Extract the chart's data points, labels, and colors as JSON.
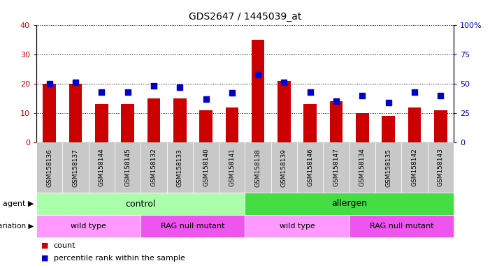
{
  "title": "GDS2647 / 1445039_at",
  "samples": [
    "GSM158136",
    "GSM158137",
    "GSM158144",
    "GSM158145",
    "GSM158132",
    "GSM158133",
    "GSM158140",
    "GSM158141",
    "GSM158138",
    "GSM158139",
    "GSM158146",
    "GSM158147",
    "GSM158134",
    "GSM158135",
    "GSM158142",
    "GSM158143"
  ],
  "counts": [
    20,
    20,
    13,
    13,
    15,
    15,
    11,
    12,
    35,
    21,
    13,
    14,
    10,
    9,
    12,
    11
  ],
  "percentiles": [
    50,
    51,
    43,
    43,
    48,
    47,
    37,
    42,
    58,
    51,
    43,
    35,
    40,
    34,
    43,
    40
  ],
  "bar_color": "#cc0000",
  "dot_color": "#0000cc",
  "ylim_left": [
    0,
    40
  ],
  "ylim_right": [
    0,
    100
  ],
  "yticks_left": [
    0,
    10,
    20,
    30,
    40
  ],
  "yticks_right": [
    0,
    25,
    50,
    75,
    100
  ],
  "ytick_labels_right": [
    "0",
    "25",
    "50",
    "75",
    "100%"
  ],
  "agent_groups": [
    {
      "label": "control",
      "start": 0,
      "end": 8,
      "color": "#aaffaa"
    },
    {
      "label": "allergen",
      "start": 8,
      "end": 16,
      "color": "#44dd44"
    }
  ],
  "genotype_groups": [
    {
      "label": "wild type",
      "start": 0,
      "end": 4,
      "color": "#ff99ff"
    },
    {
      "label": "RAG null mutant",
      "start": 4,
      "end": 8,
      "color": "#ee55ee"
    },
    {
      "label": "wild type",
      "start": 8,
      "end": 12,
      "color": "#ff99ff"
    },
    {
      "label": "RAG null mutant",
      "start": 12,
      "end": 16,
      "color": "#ee55ee"
    }
  ],
  "legend_items": [
    {
      "label": "count",
      "color": "#cc0000"
    },
    {
      "label": "percentile rank within the sample",
      "color": "#0000cc"
    }
  ],
  "bar_width": 0.5,
  "dot_size": 30,
  "xticklabel_bg": "#c8c8c8",
  "grid_color": "#000000",
  "grid_linestyle": ":",
  "spine_color_left": "#cc0000",
  "spine_color_right": "#0000cc"
}
